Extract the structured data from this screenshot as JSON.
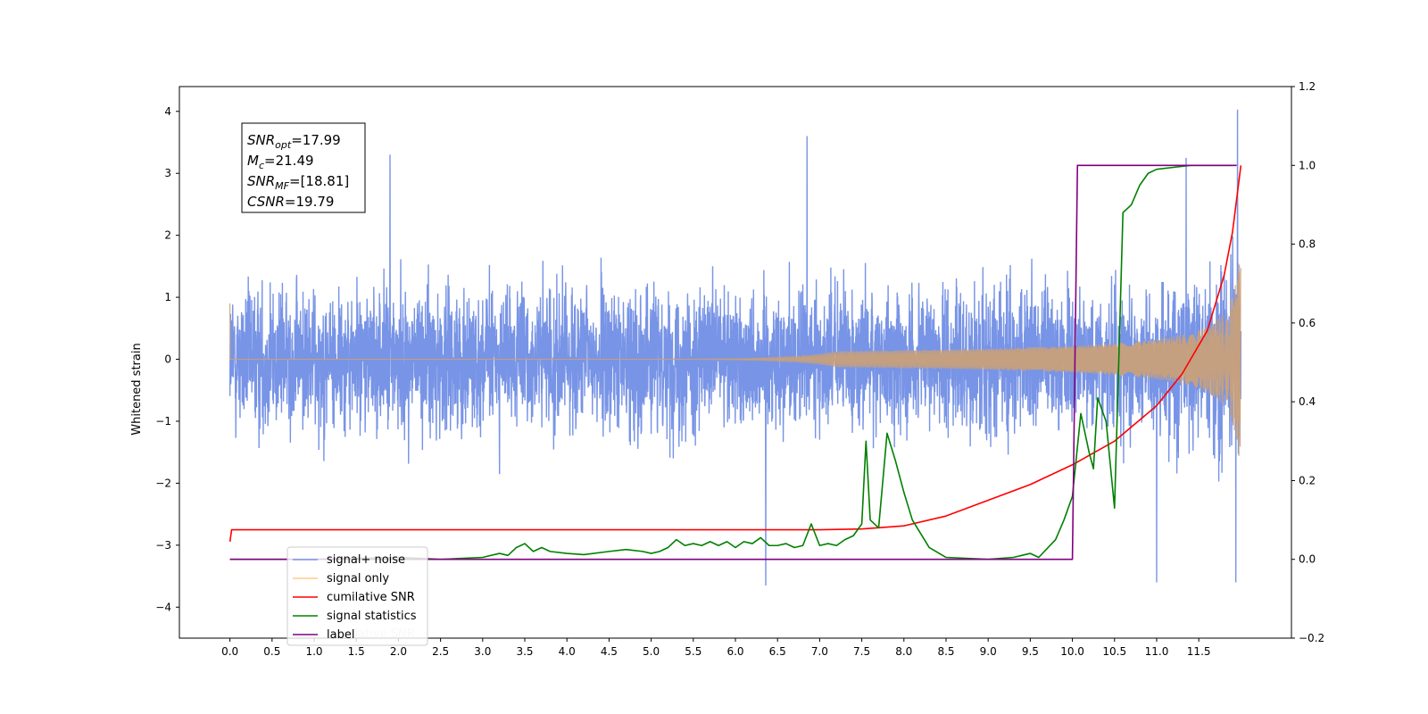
{
  "chart_data": {
    "type": "line",
    "ylabel": "Whitened strain",
    "xlim": [
      -0.6,
      12.6
    ],
    "ylim_left": [
      -4.5,
      4.4
    ],
    "ylim_right": [
      -0.2,
      1.2
    ],
    "x_ticks": [
      "0.0",
      "0.5",
      "1.0",
      "1.5",
      "2.0",
      "2.5",
      "3.0",
      "3.5",
      "4.0",
      "4.5",
      "5.0",
      "5.5",
      "6.0",
      "6.5",
      "7.0",
      "7.5",
      "8.0",
      "8.5",
      "9.0",
      "9.5",
      "10.0",
      "10.5",
      "11.0",
      "11.5"
    ],
    "y_left_ticks": [
      "4",
      "3",
      "2",
      "1",
      "0",
      "−1",
      "−2",
      "−3",
      "−4"
    ],
    "y_right_ticks": [
      "1.2",
      "1.0",
      "0.8",
      "0.6",
      "0.4",
      "0.2",
      "0.0",
      "−0.2"
    ],
    "annotation": {
      "lines": [
        {
          "base": "SNR",
          "sub": "opt",
          "rest": "=17.99"
        },
        {
          "base": "M",
          "sub": "c",
          "rest": "=21.49"
        },
        {
          "base": "SNR",
          "sub": "MF",
          "rest": "=[18.81]"
        },
        {
          "base": "CSNR",
          "sub": "",
          "rest": "=19.79"
        }
      ]
    },
    "legend": {
      "placement": "lower-left",
      "entries": [
        "signal+ noise",
        "signal only",
        "cumilative SNR",
        "signal statistics",
        "label"
      ],
      "ghost_text": "cumilative SNR"
    },
    "series": [
      {
        "name": "signal+ noise",
        "axis": "left",
        "color": "#7894e6",
        "kind": "noise",
        "t_start": 0.0,
        "t_end": 12.0,
        "envelope": [
          -2.0,
          2.0
        ],
        "extremes": [
          {
            "x": 6.36,
            "y": -3.65
          },
          {
            "x": 11.0,
            "y": -3.6
          },
          {
            "x": 11.94,
            "y": -3.6
          },
          {
            "x": 11.96,
            "y": 4.03
          },
          {
            "x": 6.85,
            "y": 3.6
          },
          {
            "x": 1.9,
            "y": 3.3
          },
          {
            "x": 11.35,
            "y": 3.25
          }
        ]
      },
      {
        "name": "signal only",
        "axis": "left",
        "color": "#c8a07a",
        "kind": "chirp",
        "t_start": 0.0,
        "t_end": 12.0,
        "initial_spike": 0.9,
        "final_amplitude": 1.6
      },
      {
        "name": "cumilative SNR",
        "axis": "right",
        "color": "#ff0000",
        "x": [
          0.0,
          0.02,
          7.0,
          7.5,
          8.0,
          8.5,
          9.0,
          9.5,
          10.0,
          10.5,
          11.0,
          11.3,
          11.6,
          11.8,
          11.9,
          12.0
        ],
        "y": [
          0.045,
          0.075,
          0.075,
          0.077,
          0.085,
          0.11,
          0.15,
          0.19,
          0.24,
          0.3,
          0.39,
          0.47,
          0.58,
          0.72,
          0.83,
          1.0
        ]
      },
      {
        "name": "signal statistics",
        "axis": "right",
        "color": "#008000",
        "x": [
          0.0,
          1.0,
          2.0,
          2.5,
          3.0,
          3.2,
          3.3,
          3.4,
          3.5,
          3.6,
          3.7,
          3.8,
          4.0,
          4.2,
          4.5,
          4.7,
          4.9,
          5.0,
          5.1,
          5.2,
          5.3,
          5.4,
          5.5,
          5.6,
          5.7,
          5.8,
          5.9,
          6.0,
          6.1,
          6.2,
          6.3,
          6.4,
          6.5,
          6.6,
          6.7,
          6.8,
          6.9,
          7.0,
          7.1,
          7.2,
          7.3,
          7.4,
          7.5,
          7.55,
          7.6,
          7.7,
          7.8,
          7.9,
          8.0,
          8.1,
          8.3,
          8.5,
          9.0,
          9.3,
          9.5,
          9.6,
          9.8,
          9.9,
          10.0,
          10.1,
          10.2,
          10.25,
          10.3,
          10.4,
          10.5,
          10.55,
          10.6,
          10.7,
          10.8,
          10.9,
          11.0,
          11.2,
          11.4,
          11.6,
          11.9
        ],
        "y": [
          0.0,
          0.0,
          0.005,
          0.0,
          0.005,
          0.015,
          0.01,
          0.03,
          0.04,
          0.02,
          0.03,
          0.02,
          0.015,
          0.012,
          0.02,
          0.025,
          0.02,
          0.015,
          0.02,
          0.03,
          0.05,
          0.035,
          0.04,
          0.035,
          0.045,
          0.035,
          0.045,
          0.03,
          0.045,
          0.04,
          0.055,
          0.035,
          0.035,
          0.04,
          0.03,
          0.035,
          0.09,
          0.035,
          0.04,
          0.035,
          0.05,
          0.06,
          0.09,
          0.3,
          0.1,
          0.08,
          0.32,
          0.25,
          0.17,
          0.1,
          0.03,
          0.005,
          0.0,
          0.005,
          0.015,
          0.005,
          0.05,
          0.1,
          0.16,
          0.37,
          0.27,
          0.23,
          0.41,
          0.35,
          0.13,
          0.5,
          0.88,
          0.9,
          0.95,
          0.98,
          0.99,
          0.995,
          1.0,
          1.0,
          1.0
        ]
      },
      {
        "name": "label",
        "axis": "right",
        "color": "#800080",
        "x": [
          0.0,
          10.0,
          10.06,
          11.95
        ],
        "y": [
          0.0,
          0.0,
          1.0,
          1.0
        ]
      }
    ]
  }
}
